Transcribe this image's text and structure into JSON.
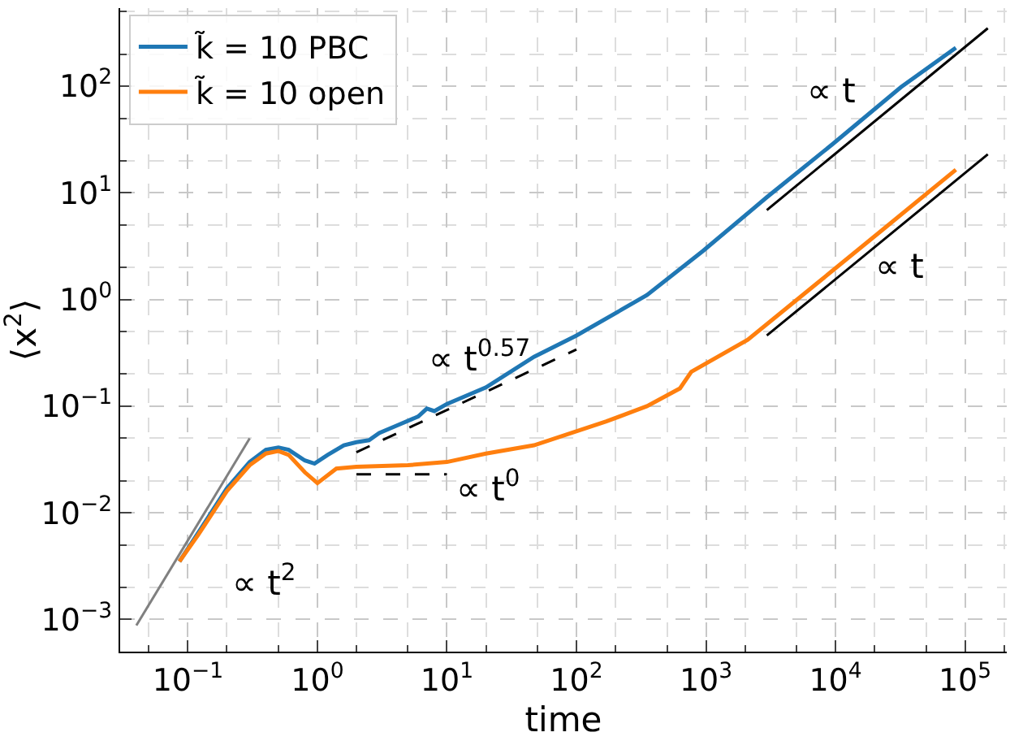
{
  "chart_data": {
    "type": "line",
    "xlabel": "time",
    "ylabel": "⟨x$^{2}$⟩",
    "log": "xy",
    "grid": true,
    "legend": "top left",
    "marker": "none",
    "xlim": [
      0.03,
      210000
    ],
    "ylim": [
      0.0005,
      540
    ],
    "xticks": [
      {
        "value": 0.1,
        "label": "10$^{−1}$"
      },
      {
        "value": 1,
        "label": "10$^{0}$"
      },
      {
        "value": 10,
        "label": "10$^{1}$"
      },
      {
        "value": 100,
        "label": "10$^{2}$"
      },
      {
        "value": 1000,
        "label": "10$^{3}$"
      },
      {
        "value": 10000,
        "label": "10$^{4}$"
      },
      {
        "value": 100000,
        "label": "10$^{5}$"
      }
    ],
    "yticks": [
      {
        "value": 0.001,
        "label": "10$^{−3}$"
      },
      {
        "value": 0.01,
        "label": "10$^{−2}$"
      },
      {
        "value": 0.1,
        "label": "10$^{−1}$"
      },
      {
        "value": 1,
        "label": "10$^{0}$"
      },
      {
        "value": 10,
        "label": "10$^{1}$"
      },
      {
        "value": 100,
        "label": "10$^{2}$"
      }
    ],
    "series": [
      {
        "name": "k̃ = 10 PBC",
        "color": "#1f77b4",
        "line_style": "solid",
        "x": [
          0.086,
          0.12,
          0.2,
          0.3,
          0.4,
          0.5,
          0.6,
          0.8,
          0.95,
          1.2,
          1.6,
          2,
          2.5,
          3,
          4,
          6,
          7,
          8,
          10,
          20,
          47,
          100,
          350,
          950,
          2950,
          9600,
          32000,
          85000
        ],
        "values": [
          0.0035,
          0.0065,
          0.017,
          0.03,
          0.039,
          0.041,
          0.039,
          0.031,
          0.029,
          0.035,
          0.043,
          0.046,
          0.048,
          0.056,
          0.065,
          0.08,
          0.095,
          0.09,
          0.105,
          0.15,
          0.29,
          0.46,
          1.1,
          2.86,
          9.1,
          29,
          98,
          230
        ]
      },
      {
        "name": "k̃ = 10 open",
        "color": "#ff7f0e",
        "line_style": "solid",
        "x": [
          0.086,
          0.12,
          0.2,
          0.3,
          0.4,
          0.5,
          0.6,
          0.8,
          1,
          1.4,
          2,
          5,
          10,
          20,
          47,
          170,
          350,
          630,
          770,
          2100,
          7100,
          23000,
          85000
        ],
        "values": [
          0.0035,
          0.0062,
          0.016,
          0.028,
          0.036,
          0.038,
          0.035,
          0.024,
          0.019,
          0.026,
          0.027,
          0.028,
          0.03,
          0.036,
          0.043,
          0.072,
          0.1,
          0.147,
          0.21,
          0.42,
          1.4,
          4.5,
          16.5
        ]
      },
      {
        "type": "line",
        "color": "#808080",
        "line_style": "solid",
        "x": [
          0.04,
          0.3
        ],
        "values": [
          0.00088,
          0.05
        ]
      },
      {
        "type": "line",
        "color": "#000000",
        "line_style": "dashed",
        "x": [
          2,
          100
        ],
        "values": [
          0.037,
          0.34
        ]
      },
      {
        "type": "line",
        "color": "#000000",
        "line_style": "dashed",
        "x": [
          2,
          10
        ],
        "values": [
          0.023,
          0.023
        ]
      },
      {
        "type": "line",
        "color": "#000000",
        "line_style": "solid",
        "x": [
          2950,
          150000
        ],
        "values": [
          6.9,
          350
        ]
      },
      {
        "type": "line",
        "color": "#000000",
        "line_style": "solid",
        "x": [
          2950,
          150000
        ],
        "values": [
          0.46,
          23
        ]
      }
    ],
    "annotations": [
      "∝ t$^{2}$",
      "∝ t$^{0.57}$",
      "∝ t$^{0}$",
      "∝ t",
      "∝ t"
    ]
  }
}
